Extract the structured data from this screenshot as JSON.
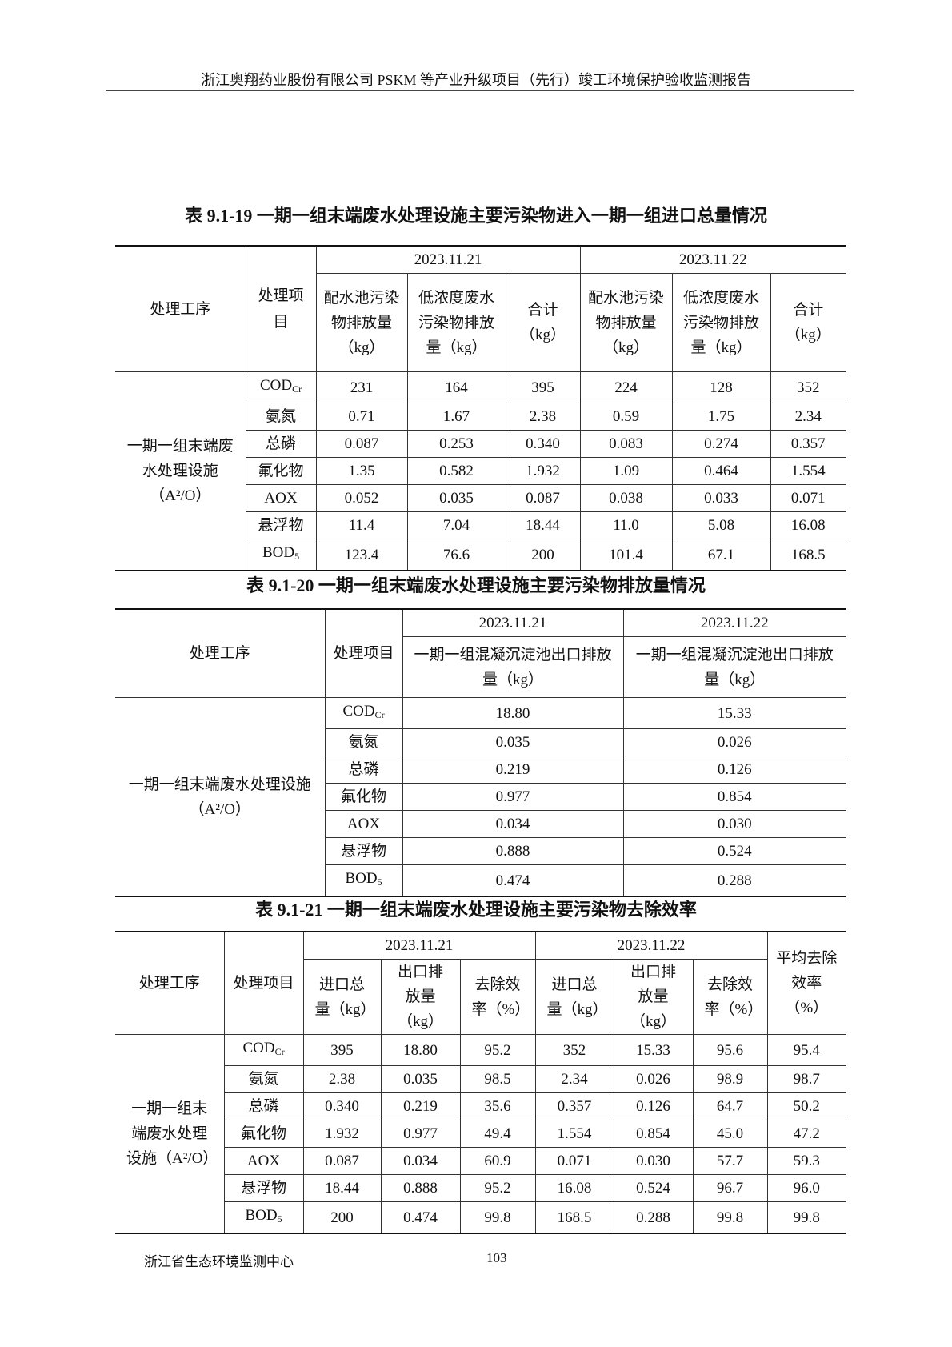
{
  "header": "浙江奥翔药业股份有限公司 PSKM 等产业升级项目（先行）竣工环境保护验收监测报告",
  "footer": {
    "org": "浙江省生态环境监测中心",
    "page": "103"
  },
  "table1": {
    "title": "表 9.1-19  一期一组末端废水处理设施主要污染物进入一期一组进口总量情况",
    "col_process": "处理工序",
    "col_item": "处理项目",
    "dates": [
      "2023.11.21",
      "2023.11.22"
    ],
    "sub_cols": [
      "配水池污染物排放量（kg）",
      "低浓度废水污染物排放量（kg）",
      "合计（kg）"
    ],
    "process": "一期一组末端废水处理设施（A²/O）",
    "rows": [
      {
        "name": "COD",
        "sub": "Cr",
        "values": [
          "231",
          "164",
          "395",
          "224",
          "128",
          "352"
        ]
      },
      {
        "name": "氨氮",
        "sub": "",
        "values": [
          "0.71",
          "1.67",
          "2.38",
          "0.59",
          "1.75",
          "2.34"
        ]
      },
      {
        "name": "总磷",
        "sub": "",
        "values": [
          "0.087",
          "0.253",
          "0.340",
          "0.083",
          "0.274",
          "0.357"
        ]
      },
      {
        "name": "氟化物",
        "sub": "",
        "values": [
          "1.35",
          "0.582",
          "1.932",
          "1.09",
          "0.464",
          "1.554"
        ]
      },
      {
        "name": "AOX",
        "sub": "",
        "values": [
          "0.052",
          "0.035",
          "0.087",
          "0.038",
          "0.033",
          "0.071"
        ]
      },
      {
        "name": "悬浮物",
        "sub": "",
        "values": [
          "11.4",
          "7.04",
          "18.44",
          "11.0",
          "5.08",
          "16.08"
        ]
      },
      {
        "name": "BOD",
        "sub": "5",
        "values": [
          "123.4",
          "76.6",
          "200",
          "101.4",
          "67.1",
          "168.5"
        ]
      }
    ]
  },
  "table2": {
    "title": "表 9.1-20  一期一组末端废水处理设施主要污染物排放量情况",
    "col_process": "处理工序",
    "col_item": "处理项目",
    "dates": [
      "2023.11.21",
      "2023.11.22"
    ],
    "sub_cols": [
      "一期一组混凝沉淀池出口排放量（kg）",
      "一期一组混凝沉淀池出口排放量（kg）"
    ],
    "process": "一期一组末端废水处理设施（A²/O）",
    "rows": [
      {
        "name": "COD",
        "sub": "Cr",
        "values": [
          "18.80",
          "15.33"
        ]
      },
      {
        "name": "氨氮",
        "sub": "",
        "values": [
          "0.035",
          "0.026"
        ]
      },
      {
        "name": "总磷",
        "sub": "",
        "values": [
          "0.219",
          "0.126"
        ]
      },
      {
        "name": "氟化物",
        "sub": "",
        "values": [
          "0.977",
          "0.854"
        ]
      },
      {
        "name": "AOX",
        "sub": "",
        "values": [
          "0.034",
          "0.030"
        ]
      },
      {
        "name": "悬浮物",
        "sub": "",
        "values": [
          "0.888",
          "0.524"
        ]
      },
      {
        "name": "BOD",
        "sub": "5",
        "values": [
          "0.474",
          "0.288"
        ]
      }
    ]
  },
  "table3": {
    "title": "表 9.1-21  一期一组末端废水处理设施主要污染物去除效率",
    "col_process": "处理工序",
    "col_item": "处理项目",
    "dates": [
      "2023.11.21",
      "2023.11.22"
    ],
    "sub_cols": [
      "进口总量（kg）",
      "出口排放量（kg）",
      "去除效率（%）"
    ],
    "col_avg": "平均去除效率（%）",
    "process": "一期一组末端废水处理设施（A²/O）",
    "rows": [
      {
        "name": "COD",
        "sub": "Cr",
        "values": [
          "395",
          "18.80",
          "95.2",
          "352",
          "15.33",
          "95.6",
          "95.4"
        ]
      },
      {
        "name": "氨氮",
        "sub": "",
        "values": [
          "2.38",
          "0.035",
          "98.5",
          "2.34",
          "0.026",
          "98.9",
          "98.7"
        ]
      },
      {
        "name": "总磷",
        "sub": "",
        "values": [
          "0.340",
          "0.219",
          "35.6",
          "0.357",
          "0.126",
          "64.7",
          "50.2"
        ]
      },
      {
        "name": "氟化物",
        "sub": "",
        "values": [
          "1.932",
          "0.977",
          "49.4",
          "1.554",
          "0.854",
          "45.0",
          "47.2"
        ]
      },
      {
        "name": "AOX",
        "sub": "",
        "values": [
          "0.087",
          "0.034",
          "60.9",
          "0.071",
          "0.030",
          "57.7",
          "59.3"
        ]
      },
      {
        "name": "悬浮物",
        "sub": "",
        "values": [
          "18.44",
          "0.888",
          "95.2",
          "16.08",
          "0.524",
          "96.7",
          "96.0"
        ]
      },
      {
        "name": "BOD",
        "sub": "5",
        "values": [
          "200",
          "0.474",
          "99.8",
          "168.5",
          "0.288",
          "99.8",
          "99.8"
        ]
      }
    ]
  }
}
